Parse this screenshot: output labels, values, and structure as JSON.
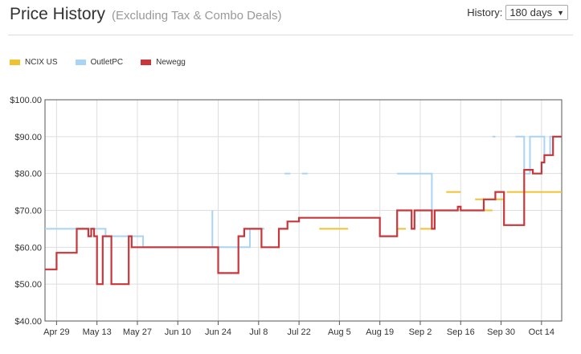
{
  "header": {
    "title": "Price History",
    "subtitle": "(Excluding Tax & Combo Deals)",
    "history_label": "History:",
    "history_value": "180 days"
  },
  "chart_data": {
    "type": "line",
    "step": true,
    "title": "Price History",
    "xlabel": "",
    "ylabel": "",
    "ylim": [
      40,
      100
    ],
    "xlim": [
      -4,
      175
    ],
    "y_ticks": [
      40,
      50,
      60,
      70,
      80,
      90,
      100
    ],
    "y_tick_labels": [
      "$40.00",
      "$50.00",
      "$60.00",
      "$70.00",
      "$80.00",
      "$90.00",
      "$100.00"
    ],
    "x_ticks": [
      0,
      14,
      28,
      42,
      56,
      70,
      84,
      98,
      112,
      126,
      140,
      154,
      168
    ],
    "x_tick_labels": [
      "Apr 29",
      "May 13",
      "May 27",
      "Jun 10",
      "Jun 24",
      "Jul 8",
      "Jul 22",
      "Aug 5",
      "Aug 19",
      "Sep 2",
      "Sep 16",
      "Sep 30",
      "Oct 14"
    ],
    "x_unit": "days since Apr 29",
    "legend_position": "top-left",
    "series": [
      {
        "name": "NCIX US",
        "color": "#f0c232",
        "segments": [
          [
            [
              91,
              65
            ],
            [
              101,
              65
            ]
          ],
          [
            [
              118,
              65
            ],
            [
              121,
              65
            ]
          ],
          [
            [
              126,
              65
            ],
            [
              130,
              65
            ]
          ],
          [
            [
              135,
              75
            ],
            [
              140,
              75
            ]
          ],
          [
            [
              145,
              73
            ],
            [
              155,
              73
            ]
          ],
          [
            [
              145,
              70
            ],
            [
              151,
              70
            ]
          ],
          [
            [
              156,
              75
            ],
            [
              175,
              75
            ]
          ]
        ]
      },
      {
        "name": "OutletPC",
        "color": "#a9d4f5",
        "segments": [
          [
            [
              -4,
              65
            ],
            [
              17,
              65
            ],
            [
              17,
              63
            ],
            [
              30,
              63
            ],
            [
              30,
              60
            ],
            [
              54,
              60
            ],
            [
              54,
              70
            ],
            [
              54,
              60
            ],
            [
              67,
              60
            ],
            [
              67,
              65
            ],
            [
              72,
              65
            ]
          ],
          [
            [
              79,
              80
            ],
            [
              81,
              80
            ]
          ],
          [
            [
              85,
              80
            ],
            [
              87,
              80
            ]
          ],
          [
            [
              118,
              80
            ],
            [
              130,
              80
            ],
            [
              130,
              70
            ],
            [
              139,
              70
            ]
          ],
          [
            [
              151,
              90
            ],
            [
              152,
              90
            ]
          ],
          [
            [
              159,
              90
            ],
            [
              162,
              90
            ],
            [
              162,
              80
            ],
            [
              164,
              80
            ],
            [
              164,
              90
            ],
            [
              169,
              90
            ],
            [
              169,
              85
            ],
            [
              171,
              85
            ],
            [
              171,
              90
            ],
            [
              175,
              90
            ]
          ]
        ]
      },
      {
        "name": "Newegg",
        "color": "#c9363a",
        "segments": [
          [
            [
              -4,
              54
            ],
            [
              0,
              54
            ],
            [
              0,
              58.5
            ],
            [
              7,
              58.5
            ],
            [
              7,
              65
            ],
            [
              11,
              65
            ],
            [
              11,
              63
            ],
            [
              12,
              63
            ],
            [
              12,
              65
            ],
            [
              13,
              65
            ],
            [
              13,
              63
            ],
            [
              14,
              63
            ],
            [
              14,
              50
            ],
            [
              16,
              50
            ],
            [
              16,
              63
            ],
            [
              19,
              63
            ],
            [
              19,
              50
            ],
            [
              25,
              50
            ],
            [
              25,
              63
            ],
            [
              26,
              63
            ],
            [
              26,
              60
            ],
            [
              56,
              60
            ],
            [
              56,
              53
            ],
            [
              63,
              53
            ],
            [
              63,
              63
            ],
            [
              65,
              63
            ],
            [
              65,
              65
            ],
            [
              71,
              65
            ],
            [
              71,
              60
            ],
            [
              77,
              60
            ],
            [
              77,
              65
            ],
            [
              80,
              65
            ],
            [
              80,
              67
            ],
            [
              84,
              67
            ],
            [
              84,
              68
            ],
            [
              112,
              68
            ],
            [
              112,
              63
            ],
            [
              118,
              63
            ],
            [
              118,
              70
            ],
            [
              123,
              70
            ],
            [
              123,
              65
            ],
            [
              124,
              65
            ],
            [
              124,
              70
            ],
            [
              130,
              70
            ],
            [
              130,
              65
            ],
            [
              131,
              65
            ],
            [
              131,
              70
            ],
            [
              139,
              70
            ],
            [
              139,
              71
            ],
            [
              140,
              71
            ],
            [
              140,
              70
            ],
            [
              148,
              70
            ],
            [
              148,
              73
            ],
            [
              152,
              73
            ],
            [
              152,
              75
            ],
            [
              155,
              75
            ],
            [
              155,
              66
            ],
            [
              162,
              66
            ],
            [
              162,
              81
            ],
            [
              165,
              81
            ],
            [
              165,
              80
            ],
            [
              168,
              80
            ],
            [
              168,
              83
            ],
            [
              169,
              83
            ],
            [
              169,
              85
            ],
            [
              172,
              85
            ],
            [
              172,
              90
            ],
            [
              175,
              90
            ]
          ]
        ]
      }
    ]
  }
}
